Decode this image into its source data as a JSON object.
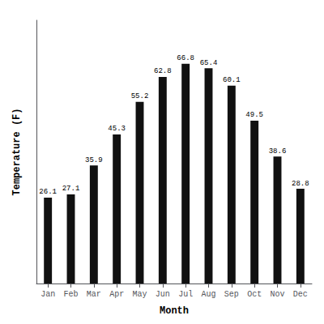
{
  "chart_data": {
    "type": "bar",
    "categories": [
      "Jan",
      "Feb",
      "Mar",
      "Apr",
      "May",
      "Jun",
      "Jul",
      "Aug",
      "Sep",
      "Oct",
      "Nov",
      "Dec"
    ],
    "values": [
      26.1,
      27.1,
      35.9,
      45.3,
      55.2,
      62.8,
      66.8,
      65.4,
      60.1,
      49.5,
      38.6,
      28.8
    ],
    "color": "#111111",
    "xlabel": "Month",
    "ylabel": "Temperature (F)",
    "ylim": [
      0,
      80
    ],
    "grid": false,
    "data_labels": true,
    "tick_labels": "x"
  }
}
